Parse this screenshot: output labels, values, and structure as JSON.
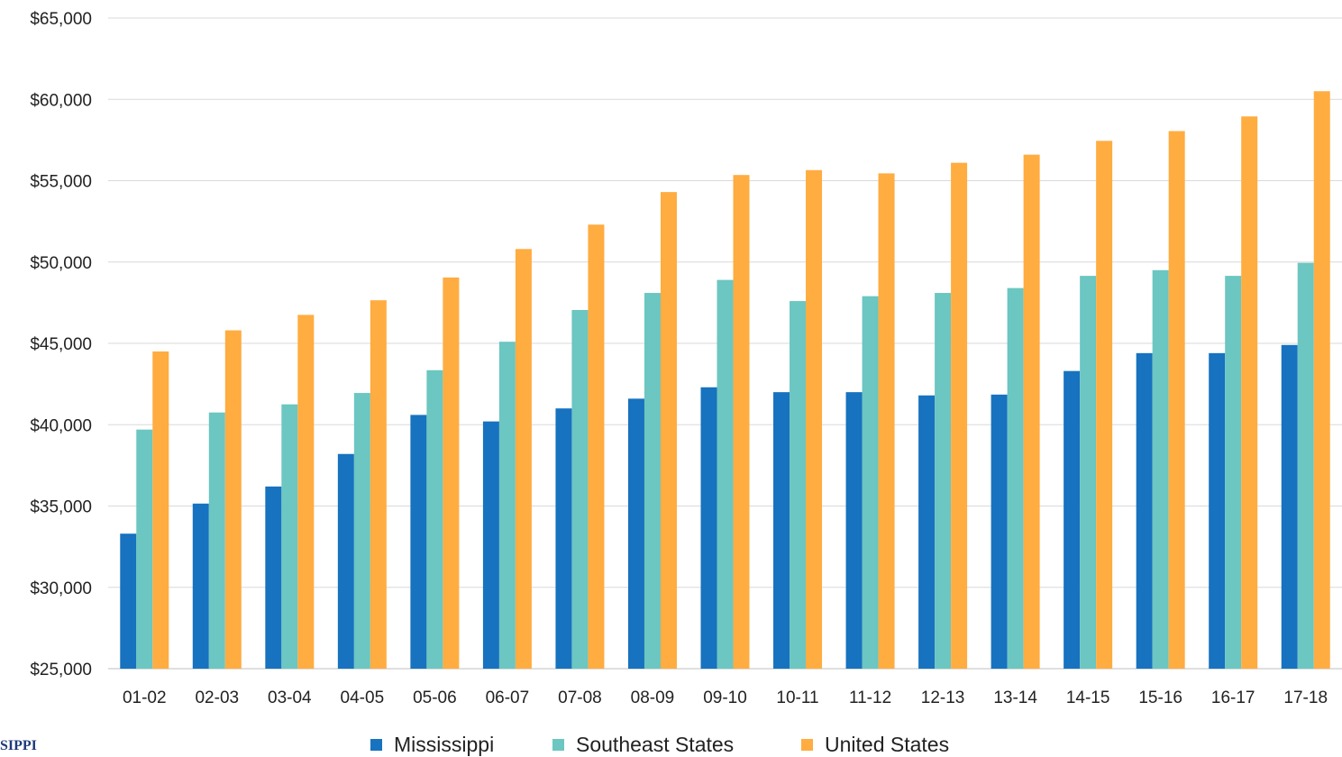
{
  "chart_data": {
    "type": "bar",
    "categories": [
      "01-02",
      "02-03",
      "03-04",
      "04-05",
      "05-06",
      "06-07",
      "07-08",
      "08-09",
      "09-10",
      "10-11",
      "11-12",
      "12-13",
      "13-14",
      "14-15",
      "15-16",
      "16-17",
      "17-18"
    ],
    "series": [
      {
        "name": "Mississippi",
        "color": "#1772bf",
        "values": [
          33300,
          35150,
          36200,
          38200,
          40600,
          40200,
          41000,
          41600,
          42300,
          42000,
          42000,
          41800,
          41850,
          43300,
          44400,
          44400,
          44900
        ]
      },
      {
        "name": "Southeast States",
        "color": "#6cc6c1",
        "values": [
          39700,
          40750,
          41250,
          41950,
          43350,
          45100,
          47050,
          48100,
          48900,
          47600,
          47900,
          48100,
          48400,
          49150,
          49500,
          49150,
          49950
        ]
      },
      {
        "name": "United States",
        "color": "#ffac41",
        "values": [
          44500,
          45800,
          46750,
          47650,
          49050,
          50800,
          52300,
          54300,
          55350,
          55650,
          55450,
          56100,
          56600,
          57450,
          58050,
          58950,
          60500
        ]
      }
    ],
    "y_ticks": [
      "$25,000",
      "$30,000",
      "$35,000",
      "$40,000",
      "$45,000",
      "$50,000",
      "$55,000",
      "$60,000",
      "$65,000"
    ],
    "y_tick_values": [
      25000,
      30000,
      35000,
      40000,
      45000,
      50000,
      55000,
      60000,
      65000
    ],
    "ylim": [
      25000,
      65000
    ],
    "title": "",
    "xlabel": "",
    "ylabel": "",
    "grid": true,
    "legend_position": "bottom"
  },
  "logo": {
    "text": "SIPPI"
  }
}
